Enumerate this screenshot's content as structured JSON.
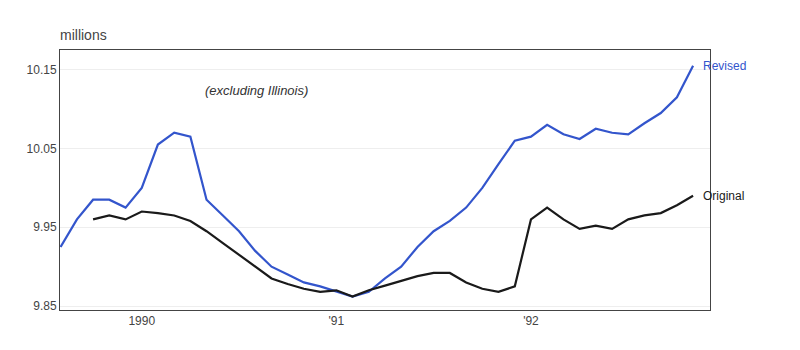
{
  "chart_data": {
    "type": "line",
    "title": "millions",
    "subtitle": "(excluding Illinois)",
    "xlim": [
      1989.58,
      1992.92
    ],
    "xticks": [
      1990,
      {
        "value": 1991,
        "label": "'91"
      },
      {
        "value": 1992,
        "label": "'92"
      }
    ],
    "ylim": [
      9.845,
      10.175
    ],
    "yticks": [
      9.85,
      9.95,
      10.05,
      10.15
    ],
    "grid": "y",
    "series": [
      {
        "name": "Revised",
        "color": "#3355cc",
        "x": [
          1989.583,
          1989.667,
          1989.75,
          1989.833,
          1989.917,
          1990.0,
          1990.083,
          1990.167,
          1990.25,
          1990.333,
          1990.417,
          1990.5,
          1990.583,
          1990.667,
          1990.75,
          1990.833,
          1990.917,
          1991.0,
          1991.083,
          1991.167,
          1991.25,
          1991.333,
          1991.417,
          1991.5,
          1991.583,
          1991.667,
          1991.75,
          1991.833,
          1991.917,
          1992.0,
          1992.083,
          1992.167,
          1992.25,
          1992.333,
          1992.417,
          1992.5,
          1992.583,
          1992.667,
          1992.75,
          1992.833
        ],
        "values": [
          9.925,
          9.96,
          9.985,
          9.985,
          9.975,
          10.0,
          10.055,
          10.07,
          10.065,
          9.985,
          9.965,
          9.945,
          9.92,
          9.9,
          9.89,
          9.88,
          9.875,
          9.868,
          9.862,
          9.868,
          9.885,
          9.9,
          9.925,
          9.945,
          9.958,
          9.975,
          10.0,
          10.03,
          10.06,
          10.065,
          10.08,
          10.068,
          10.062,
          10.075,
          10.07,
          10.068,
          10.082,
          10.095,
          10.115,
          10.155
        ]
      },
      {
        "name": "Original",
        "color": "#1a1a1a",
        "x": [
          1989.75,
          1989.833,
          1989.917,
          1990.0,
          1990.083,
          1990.167,
          1990.25,
          1990.333,
          1990.417,
          1990.5,
          1990.583,
          1990.667,
          1990.75,
          1990.833,
          1990.917,
          1991.0,
          1991.083,
          1991.167,
          1991.25,
          1991.333,
          1991.417,
          1991.5,
          1991.583,
          1991.667,
          1991.75,
          1991.833,
          1991.917,
          1992.0,
          1992.083,
          1992.167,
          1992.25,
          1992.333,
          1992.417,
          1992.5,
          1992.583,
          1992.667,
          1992.75,
          1992.833
        ],
        "values": [
          9.96,
          9.965,
          9.96,
          9.97,
          9.968,
          9.965,
          9.958,
          9.945,
          9.93,
          9.915,
          9.9,
          9.885,
          9.878,
          9.872,
          9.868,
          9.87,
          9.862,
          9.87,
          9.876,
          9.882,
          9.888,
          9.892,
          9.892,
          9.88,
          9.872,
          9.868,
          9.875,
          9.96,
          9.975,
          9.96,
          9.948,
          9.952,
          9.948,
          9.96,
          9.965,
          9.968,
          9.978,
          9.99
        ]
      }
    ]
  }
}
